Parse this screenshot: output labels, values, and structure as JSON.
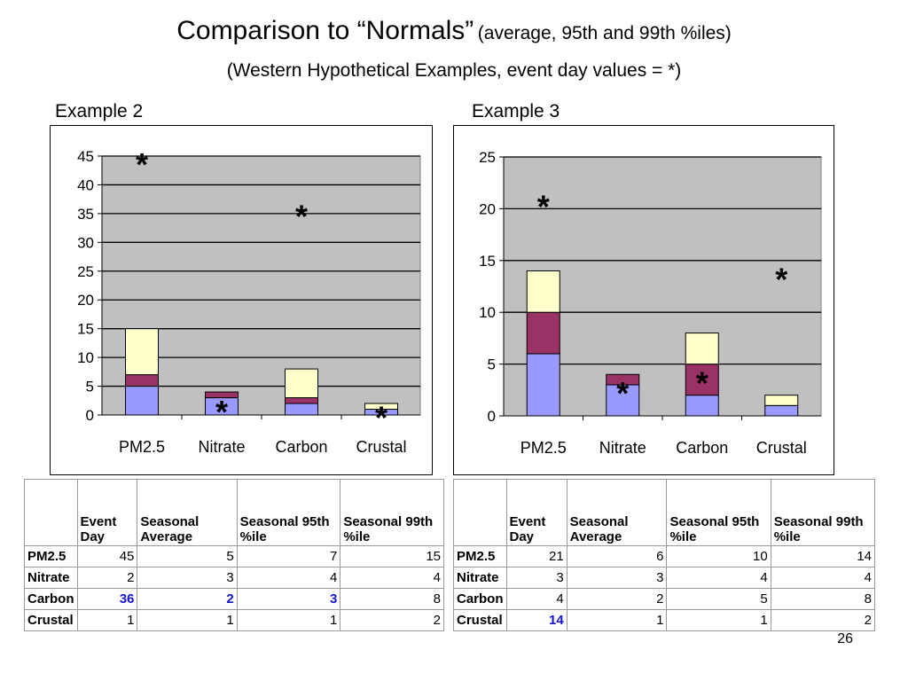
{
  "title": "Comparison to “Normals”",
  "title_note": "(average, 95th and 99th %iles)",
  "subtitle": "(Western Hypothetical Examples, event day values = *)",
  "page_number": "26",
  "colors": {
    "average": "#9999ff",
    "p95": "#993366",
    "p99": "#ffffcc",
    "plot_bg": "#c0c0c0"
  },
  "chart_data": [
    {
      "type": "bar",
      "title": "Example 2",
      "categories": [
        "PM2.5",
        "Nitrate",
        "Carbon",
        "Crustal"
      ],
      "series": [
        {
          "values": [
            5,
            3,
            2,
            1
          ]
        },
        {
          "values": [
            2,
            1,
            1,
            0
          ]
        },
        {
          "values": [
            8,
            0,
            5,
            1
          ]
        }
      ],
      "event_day": [
        45,
        2,
        36,
        1
      ],
      "event_marker": "*",
      "ylim": [
        0,
        45
      ],
      "yticks": [
        0,
        5,
        10,
        15,
        20,
        25,
        30,
        35,
        40,
        45
      ],
      "grid": true
    },
    {
      "type": "bar",
      "title": "Example 3",
      "categories": [
        "PM2.5",
        "Nitrate",
        "Carbon",
        "Crustal"
      ],
      "series": [
        {
          "values": [
            6,
            3,
            2,
            1
          ]
        },
        {
          "values": [
            4,
            1,
            3,
            0
          ]
        },
        {
          "values": [
            4,
            0,
            3,
            1
          ]
        }
      ],
      "event_day": [
        21,
        3,
        4,
        14
      ],
      "event_marker": "*",
      "ylim": [
        0,
        25
      ],
      "yticks": [
        0,
        5,
        10,
        15,
        20,
        25
      ],
      "grid": true
    }
  ],
  "tables": [
    {
      "headers": [
        "",
        "Event Day",
        "Seasonal Average",
        "Seasonal 95th %ile",
        "Seasonal 99th %ile"
      ],
      "rows": [
        {
          "label": "PM2.5",
          "cells": [
            "45",
            "5",
            "7",
            "15"
          ],
          "highlight": [
            false,
            false,
            false,
            false
          ]
        },
        {
          "label": "Nitrate",
          "cells": [
            "2",
            "3",
            "4",
            "4"
          ],
          "highlight": [
            false,
            false,
            false,
            false
          ]
        },
        {
          "label": "Carbon",
          "cells": [
            "36",
            "2",
            "3",
            "8"
          ],
          "highlight": [
            true,
            true,
            true,
            false
          ]
        },
        {
          "label": "Crustal",
          "cells": [
            "1",
            "1",
            "1",
            "2"
          ],
          "highlight": [
            false,
            false,
            false,
            false
          ]
        }
      ]
    },
    {
      "headers": [
        "",
        "Event Day",
        "Seasonal Average",
        "Seasonal 95th %ile",
        "Seasonal 99th %ile"
      ],
      "rows": [
        {
          "label": "PM2.5",
          "cells": [
            "21",
            "6",
            "10",
            "14"
          ],
          "highlight": [
            false,
            false,
            false,
            false
          ]
        },
        {
          "label": "Nitrate",
          "cells": [
            "3",
            "3",
            "4",
            "4"
          ],
          "highlight": [
            false,
            false,
            false,
            false
          ]
        },
        {
          "label": "Carbon",
          "cells": [
            "4",
            "2",
            "5",
            "8"
          ],
          "highlight": [
            false,
            false,
            false,
            false
          ]
        },
        {
          "label": "Crustal",
          "cells": [
            "14",
            "1",
            "1",
            "2"
          ],
          "highlight": [
            true,
            false,
            false,
            false
          ]
        }
      ]
    }
  ]
}
